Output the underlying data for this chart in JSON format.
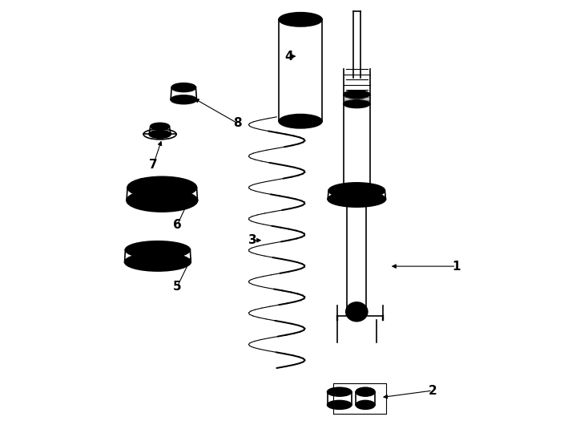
{
  "bg_color": "#ffffff",
  "line_color": "#000000",
  "label_color": "#000000",
  "figsize": [
    7.34,
    5.4
  ],
  "dpi": 100,
  "labels": {
    "1": [
      0.845,
      0.385,
      0.875,
      0.39,
      "right"
    ],
    "2": [
      0.79,
      0.115,
      0.82,
      0.1,
      "right"
    ],
    "3": [
      0.44,
      0.44,
      0.415,
      0.445,
      "left"
    ],
    "4": [
      0.515,
      0.87,
      0.49,
      0.87,
      "left"
    ],
    "5": [
      0.265,
      0.335,
      0.24,
      0.335,
      "left"
    ],
    "6": [
      0.265,
      0.48,
      0.24,
      0.48,
      "left"
    ],
    "7": [
      0.21,
      0.62,
      0.185,
      0.62,
      "left"
    ],
    "8": [
      0.34,
      0.715,
      0.365,
      0.715,
      "right"
    ]
  }
}
